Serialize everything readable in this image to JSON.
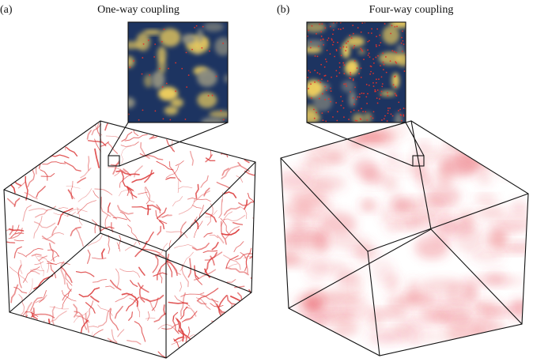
{
  "panels": [
    {
      "label": "(a)",
      "title": "One-way coupling"
    },
    {
      "label": "(b)",
      "title": "Four-way coupling"
    }
  ]
}
